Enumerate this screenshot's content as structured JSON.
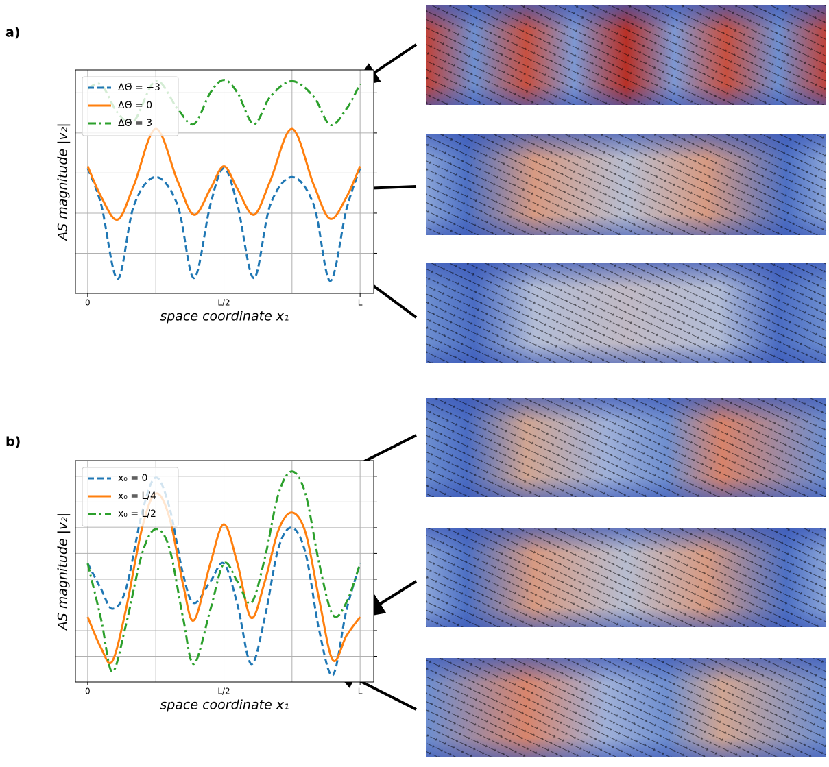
{
  "chart_data": [
    {
      "type": "line",
      "panel_label": "a)",
      "xlabel": "space coordinate  x₁",
      "ylabel": "AS magnitude  |v₂|",
      "x": [
        0,
        0.05,
        0.11,
        0.17,
        0.25,
        0.33,
        0.39,
        0.45,
        0.5,
        0.55,
        0.61,
        0.67,
        0.75,
        0.83,
        0.89,
        0.95,
        1
      ],
      "series": [
        {
          "name": "ΔΘ̄ = −3",
          "color": "#1f77b4",
          "linestyle": "--",
          "values": [
            3.12,
            2.2,
            0.36,
            2.2,
            2.9,
            2.2,
            0.38,
            2.2,
            3.12,
            2.2,
            0.38,
            2.2,
            2.9,
            2.2,
            0.31,
            2.1,
            3.12
          ]
        },
        {
          "name": "ΔΘ̄ = 0",
          "color": "#ff7f0e",
          "linestyle": "-",
          "values": [
            3.17,
            2.4,
            1.84,
            2.7,
            4.1,
            2.8,
            1.96,
            2.6,
            3.17,
            2.6,
            1.96,
            2.8,
            4.1,
            2.7,
            1.86,
            2.4,
            3.17
          ]
        },
        {
          "name": "ΔΘ̄ = 3",
          "color": "#2ca02c",
          "linestyle": "-.",
          "values": [
            5.1,
            5.2,
            4.5,
            4.3,
            5.3,
            4.6,
            4.22,
            5.0,
            5.32,
            5.0,
            4.22,
            4.9,
            5.29,
            4.9,
            4.2,
            4.6,
            5.22
          ]
        }
      ],
      "xlim": [
        -0.045,
        1.05
      ],
      "xticks": [
        0,
        {
          "value": 0.5,
          "label": "L/2"
        },
        {
          "value": 1,
          "label": "L"
        }
      ],
      "xminor": [
        0.25,
        0.75
      ],
      "ylim": [
        0,
        5.57
      ],
      "yticks": [
        1,
        2,
        3,
        4,
        5
      ],
      "grid": true,
      "legend": "upper left"
    },
    {
      "type": "line",
      "panel_label": "b)",
      "xlabel": "space coordinate  x₁",
      "ylabel": "AS magnitude  |v₂|",
      "x": [
        0,
        0.05,
        0.09,
        0.14,
        0.2,
        0.25,
        0.3,
        0.35,
        0.39,
        0.45,
        0.5,
        0.55,
        0.6,
        0.65,
        0.7,
        0.75,
        0.8,
        0.85,
        0.9,
        0.95,
        1
      ],
      "series": [
        {
          "name": "x₀ = 0",
          "color": "#1f77b4",
          "linestyle": "--",
          "values": [
            4.61,
            3.6,
            2.85,
            3.6,
            6.6,
            7.95,
            6.8,
            4.2,
            3.07,
            3.9,
            4.61,
            3.0,
            0.7,
            2.5,
            5.2,
            6.0,
            5.0,
            2.0,
            0.27,
            2.8,
            4.61
          ]
        },
        {
          "name": "x₀ = L/4",
          "color": "#ff7f0e",
          "linestyle": "-",
          "values": [
            2.53,
            1.3,
            0.8,
            2.8,
            6.0,
            7.33,
            6.4,
            3.8,
            2.4,
            4.6,
            6.13,
            4.6,
            2.5,
            3.9,
            5.9,
            6.59,
            5.8,
            3.2,
            0.85,
            1.8,
            2.53
          ]
        },
        {
          "name": "x₀ = L/2",
          "color": "#2ca02c",
          "linestyle": "-.",
          "values": [
            4.61,
            2.4,
            0.4,
            2.2,
            5.0,
            5.95,
            5.2,
            2.5,
            0.7,
            2.8,
            4.61,
            3.9,
            3.07,
            4.8,
            7.3,
            8.19,
            7.3,
            4.6,
            2.61,
            3.1,
            4.61
          ]
        }
      ],
      "xlim": [
        -0.045,
        1.05
      ],
      "xticks": [
        0,
        {
          "value": 0.5,
          "label": "L/2"
        },
        {
          "value": 1,
          "label": "L"
        }
      ],
      "xminor": [
        0.25,
        0.75
      ],
      "ylim": [
        0,
        8.61
      ],
      "yticks": [
        1,
        2,
        3,
        4,
        5,
        6,
        7,
        8
      ],
      "grid": true,
      "legend": "upper left"
    }
  ]
}
